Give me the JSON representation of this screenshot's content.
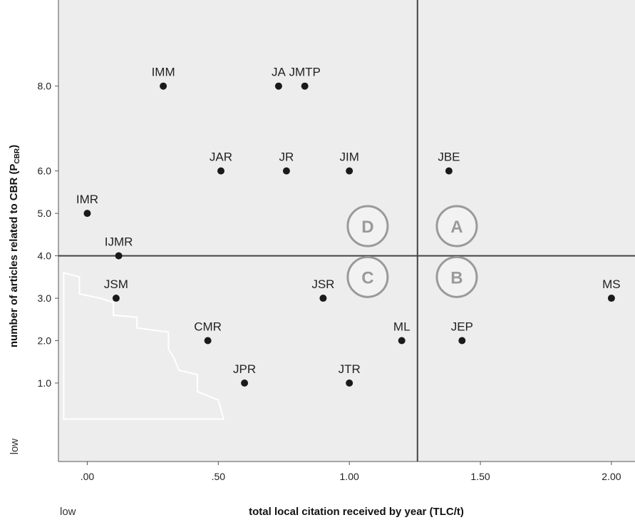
{
  "chart_data": {
    "type": "scatter",
    "xlabel": "total local citation received by year (TLC/t)",
    "ylabel_main": "number of articles related to CBR (P",
    "ylabel_sub": "CBR",
    "ylabel_end": ")",
    "x_low_label": "low",
    "y_low_label": "low",
    "xlim": [
      -0.11,
      2.09
    ],
    "ylim": [
      -0.85,
      10.03
    ],
    "x_ticks": [
      {
        "value": 0.0,
        "label": ".00"
      },
      {
        "value": 0.5,
        "label": ".50"
      },
      {
        "value": 1.0,
        "label": "1.00"
      },
      {
        "value": 1.5,
        "label": "1.50"
      },
      {
        "value": 2.0,
        "label": "2.00"
      }
    ],
    "y_ticks": [
      {
        "value": 1.0,
        "label": "1.0"
      },
      {
        "value": 2.0,
        "label": "2.0"
      },
      {
        "value": 3.0,
        "label": "3.0"
      },
      {
        "value": 4.0,
        "label": "4.0"
      },
      {
        "value": 5.0,
        "label": "5.0"
      },
      {
        "value": 6.0,
        "label": "6.0"
      },
      {
        "value": 8.0,
        "label": "8.0"
      }
    ],
    "divider_x": 1.26,
    "divider_y": 4.0,
    "quadrants": [
      {
        "label": "A",
        "x": 1.41,
        "y": 4.7
      },
      {
        "label": "B",
        "x": 1.41,
        "y": 3.5
      },
      {
        "label": "C",
        "x": 1.07,
        "y": 3.5
      },
      {
        "label": "D",
        "x": 1.07,
        "y": 4.7
      }
    ],
    "points": [
      {
        "label": "IMM",
        "x": 0.29,
        "y": 8.0
      },
      {
        "label": "JA",
        "x": 0.73,
        "y": 8.0
      },
      {
        "label": "JMTP",
        "x": 0.83,
        "y": 8.0
      },
      {
        "label": "JAR",
        "x": 0.51,
        "y": 6.0
      },
      {
        "label": "JR",
        "x": 0.76,
        "y": 6.0
      },
      {
        "label": "JIM",
        "x": 1.0,
        "y": 6.0
      },
      {
        "label": "JBE",
        "x": 1.38,
        "y": 6.0
      },
      {
        "label": "IMR",
        "x": 0.0,
        "y": 5.0
      },
      {
        "label": "IJMR",
        "x": 0.12,
        "y": 4.0
      },
      {
        "label": "JSM",
        "x": 0.11,
        "y": 3.0
      },
      {
        "label": "JSR",
        "x": 0.9,
        "y": 3.0
      },
      {
        "label": "MS",
        "x": 2.0,
        "y": 3.0
      },
      {
        "label": "CMR",
        "x": 0.46,
        "y": 2.0
      },
      {
        "label": "ML",
        "x": 1.2,
        "y": 2.0
      },
      {
        "label": "JEP",
        "x": 1.43,
        "y": 2.0
      },
      {
        "label": "JPR",
        "x": 0.6,
        "y": 1.0
      },
      {
        "label": "JTR",
        "x": 1.0,
        "y": 1.0
      }
    ],
    "region_outline": [
      [
        -0.09,
        3.6
      ],
      [
        -0.03,
        3.5
      ],
      [
        -0.03,
        3.1
      ],
      [
        0.05,
        3.0
      ],
      [
        0.1,
        2.9
      ],
      [
        0.1,
        2.6
      ],
      [
        0.19,
        2.55
      ],
      [
        0.19,
        2.3
      ],
      [
        0.31,
        2.2
      ],
      [
        0.31,
        1.8
      ],
      [
        0.33,
        1.6
      ],
      [
        0.35,
        1.3
      ],
      [
        0.42,
        1.2
      ],
      [
        0.42,
        0.8
      ],
      [
        0.5,
        0.6
      ],
      [
        0.52,
        0.15
      ],
      [
        -0.09,
        0.15
      ]
    ],
    "colors": {
      "plot_bg": "#ededed",
      "point": "#1a1a1a",
      "divider": "#444444",
      "quadrant": "#9a9a9a",
      "region": "#ffffff"
    }
  }
}
